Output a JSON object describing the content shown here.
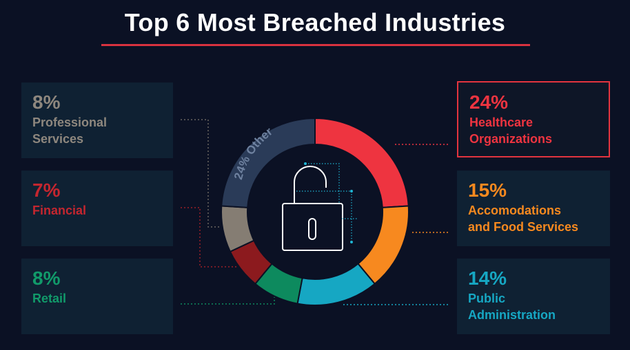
{
  "title": "Top 6 Most Breached Industries",
  "chart_data": {
    "type": "pie",
    "style": "donut",
    "center_icon": "padlock-icon",
    "slices": [
      {
        "label": "Healthcare Organizations",
        "lines": [
          "Healthcare",
          "Organizations"
        ],
        "value": 24,
        "pct": "24%",
        "color": "#ee3440",
        "text_color": "#ee3440",
        "side": "right",
        "highlight": true
      },
      {
        "label": "Accomodations and Food Services",
        "lines": [
          "Accomodations",
          "and Food Services"
        ],
        "value": 15,
        "pct": "15%",
        "color": "#f7891f",
        "text_color": "#f7891f",
        "side": "right",
        "highlight": false
      },
      {
        "label": "Public Administration",
        "lines": [
          "Public",
          "Administration"
        ],
        "value": 14,
        "pct": "14%",
        "color": "#16a7c3",
        "text_color": "#16a7c3",
        "side": "right",
        "highlight": false
      },
      {
        "label": "Retail",
        "lines": [
          "Retail"
        ],
        "value": 8,
        "pct": "8%",
        "color": "#0d8a5e",
        "text_color": "#119a6a",
        "side": "left",
        "highlight": false
      },
      {
        "label": "Financial",
        "lines": [
          "Financial"
        ],
        "value": 7,
        "pct": "7%",
        "color": "#8c1a1e",
        "text_color": "#c4262f",
        "side": "left",
        "highlight": false
      },
      {
        "label": "Professional Services",
        "lines": [
          "Professional",
          "Services"
        ],
        "value": 8,
        "pct": "8%",
        "color": "#857d73",
        "text_color": "#8e877e",
        "side": "left",
        "highlight": false
      },
      {
        "label": "Other",
        "lines": [],
        "value": 24,
        "pct": "24%",
        "ring_label": "24% Other",
        "color": "#2a3b58",
        "text_color": "#5a6e8c",
        "side": "ring",
        "highlight": false
      }
    ]
  }
}
